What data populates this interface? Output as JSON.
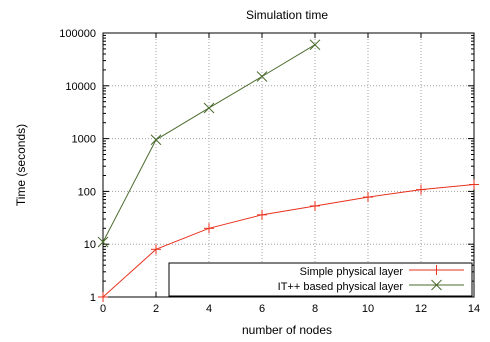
{
  "chart_data": {
    "type": "line",
    "title": "Simulation time",
    "xlabel": "number of nodes",
    "ylabel": "Time (seconds)",
    "xlim": [
      0,
      14
    ],
    "ylim": [
      1,
      100000
    ],
    "yscale": "log",
    "grid": true,
    "legend_position": "bottom-right",
    "x_ticks": [
      "0",
      "2",
      "4",
      "6",
      "8",
      "10",
      "12",
      "14"
    ],
    "y_ticks": [
      "1",
      "10",
      "100",
      "1000",
      "10000",
      "100000"
    ],
    "series": [
      {
        "name": "Simple physical layer",
        "color": "#e8321e",
        "marker": "plus",
        "points": [
          {
            "x": 0,
            "y": 1
          },
          {
            "x": 2,
            "y": 8
          },
          {
            "x": 4,
            "y": 20
          },
          {
            "x": 6,
            "y": 36
          },
          {
            "x": 8,
            "y": 53
          },
          {
            "x": 10,
            "y": 78
          },
          {
            "x": 12,
            "y": 108
          },
          {
            "x": 14,
            "y": 135
          }
        ]
      },
      {
        "name": "IT++ based physical layer",
        "color": "#4a6b2e",
        "marker": "cross",
        "points": [
          {
            "x": 0,
            "y": 11
          },
          {
            "x": 2,
            "y": 950
          },
          {
            "x": 4,
            "y": 3800
          },
          {
            "x": 6,
            "y": 15000
          },
          {
            "x": 8,
            "y": 60000
          }
        ]
      }
    ]
  }
}
